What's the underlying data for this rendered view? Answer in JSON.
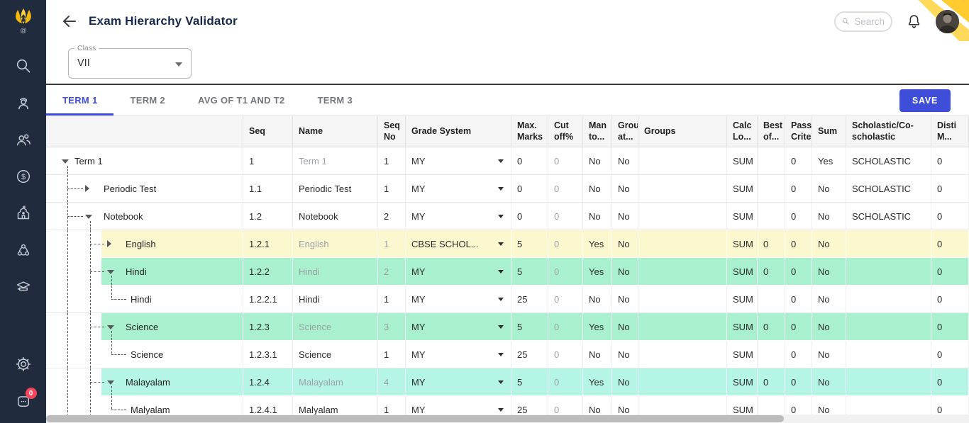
{
  "colors": {
    "accent": "#3E4ED8",
    "sidebar": "#202B3D",
    "title": "#14294B",
    "tab-inactive": "#73777C",
    "hl-yellow": "#FBF7CF",
    "hl-green": "#A9F1CE",
    "hl-cyan": "#B5F5E6",
    "badge": "#F5455C",
    "logo-yellow": "#F9C20A"
  },
  "sidebar": {
    "icons": [
      "search-icon",
      "student-icon",
      "users-icon",
      "finance-icon",
      "school-icon",
      "community-icon",
      "graduation-icon",
      "settings-icon",
      "chat-icon"
    ],
    "chat_badge": "0"
  },
  "header": {
    "title": "Exam Hierarchy Validator",
    "search_placeholder": "Search"
  },
  "filters": {
    "class_label": "Class",
    "class_value": "VII"
  },
  "tabs": [
    {
      "label": "TERM 1",
      "active": true
    },
    {
      "label": "TERM 2",
      "active": false
    },
    {
      "label": "AVG OF T1 AND T2",
      "active": false
    },
    {
      "label": "TERM 3",
      "active": false
    }
  ],
  "save_label": "SAVE",
  "table": {
    "columns": [
      "",
      "Seq",
      "Name",
      "Seq No",
      "Grade System",
      "Max. Marks",
      "Cut off%",
      "Man to...",
      "Grou at...",
      "Groups",
      "Calc Lo...",
      "Best of...",
      "Pass Crite",
      "Sum",
      "Scholastic/Co-scholastic",
      "Disti M..."
    ],
    "rows": [
      {
        "tree_label": "Term 1",
        "level": 0,
        "toggle": "expanded",
        "highlight": "none",
        "seq": "1",
        "name": "Term 1",
        "name_muted": true,
        "seq_no": "1",
        "seq_no_muted": false,
        "grade_system": "MY",
        "max_marks": "0",
        "cut_off": "0",
        "mandatory": "No",
        "group_at": "No",
        "groups": "",
        "calc_logic": "SUM",
        "best_of": "",
        "pass_criteria": "0",
        "sum": "Yes",
        "scholastic": "SCHOLASTIC",
        "distinct_marks": "0"
      },
      {
        "tree_label": "Periodic Test",
        "level": 1,
        "toggle": "collapsed",
        "highlight": "none",
        "seq": "1.1",
        "name": "Periodic Test",
        "name_muted": false,
        "seq_no": "1",
        "seq_no_muted": false,
        "grade_system": "MY",
        "max_marks": "0",
        "cut_off": "0",
        "mandatory": "No",
        "group_at": "No",
        "groups": "",
        "calc_logic": "SUM",
        "best_of": "",
        "pass_criteria": "0",
        "sum": "No",
        "scholastic": "SCHOLASTIC",
        "distinct_marks": "0"
      },
      {
        "tree_label": "Notebook",
        "level": 1,
        "toggle": "expanded",
        "highlight": "none",
        "seq": "1.2",
        "name": "Notebook",
        "name_muted": false,
        "seq_no": "2",
        "seq_no_muted": false,
        "grade_system": "MY",
        "max_marks": "0",
        "cut_off": "0",
        "mandatory": "No",
        "group_at": "No",
        "groups": "",
        "calc_logic": "SUM",
        "best_of": "",
        "pass_criteria": "0",
        "sum": "No",
        "scholastic": "SCHOLASTIC",
        "distinct_marks": "0"
      },
      {
        "tree_label": "English",
        "level": 2,
        "toggle": "collapsed",
        "highlight": "yellow",
        "seq": "1.2.1",
        "name": "English",
        "name_muted": true,
        "seq_no": "1",
        "seq_no_muted": true,
        "grade_system": "CBSE SCHOL...",
        "max_marks": "5",
        "cut_off": "0",
        "mandatory": "Yes",
        "group_at": "No",
        "groups": "",
        "calc_logic": "SUM",
        "best_of": "0",
        "pass_criteria": "0",
        "sum": "No",
        "scholastic": "",
        "distinct_marks": "0"
      },
      {
        "tree_label": "Hindi",
        "level": 2,
        "toggle": "expanded",
        "highlight": "green",
        "seq": "1.2.2",
        "name": "Hindi",
        "name_muted": true,
        "seq_no": "2",
        "seq_no_muted": true,
        "grade_system": "MY",
        "max_marks": "5",
        "cut_off": "0",
        "mandatory": "Yes",
        "group_at": "No",
        "groups": "",
        "calc_logic": "SUM",
        "best_of": "0",
        "pass_criteria": "0",
        "sum": "No",
        "scholastic": "",
        "distinct_marks": "0"
      },
      {
        "tree_label": "Hindi",
        "level": 3,
        "toggle": "none",
        "highlight": "none",
        "seq": "1.2.2.1",
        "name": "Hindi",
        "name_muted": false,
        "seq_no": "1",
        "seq_no_muted": false,
        "grade_system": "MY",
        "max_marks": "25",
        "cut_off": "0",
        "mandatory": "No",
        "group_at": "No",
        "groups": "",
        "calc_logic": "SUM",
        "best_of": "",
        "pass_criteria": "0",
        "sum": "No",
        "scholastic": "",
        "distinct_marks": "0"
      },
      {
        "tree_label": "Science",
        "level": 2,
        "toggle": "expanded",
        "highlight": "green",
        "seq": "1.2.3",
        "name": "Science",
        "name_muted": true,
        "seq_no": "3",
        "seq_no_muted": true,
        "grade_system": "MY",
        "max_marks": "5",
        "cut_off": "0",
        "mandatory": "Yes",
        "group_at": "No",
        "groups": "",
        "calc_logic": "SUM",
        "best_of": "0",
        "pass_criteria": "0",
        "sum": "No",
        "scholastic": "",
        "distinct_marks": "0"
      },
      {
        "tree_label": "Science",
        "level": 3,
        "toggle": "none",
        "highlight": "none",
        "seq": "1.2.3.1",
        "name": "Science",
        "name_muted": false,
        "seq_no": "1",
        "seq_no_muted": false,
        "grade_system": "MY",
        "max_marks": "25",
        "cut_off": "0",
        "mandatory": "No",
        "group_at": "No",
        "groups": "",
        "calc_logic": "SUM",
        "best_of": "",
        "pass_criteria": "0",
        "sum": "No",
        "scholastic": "",
        "distinct_marks": "0"
      },
      {
        "tree_label": "Malayalam",
        "level": 2,
        "toggle": "expanded",
        "highlight": "cyan",
        "seq": "1.2.4",
        "name": "Malayalam",
        "name_muted": true,
        "seq_no": "4",
        "seq_no_muted": true,
        "grade_system": "MY",
        "max_marks": "5",
        "cut_off": "0",
        "mandatory": "Yes",
        "group_at": "No",
        "groups": "",
        "calc_logic": "SUM",
        "best_of": "0",
        "pass_criteria": "0",
        "sum": "No",
        "scholastic": "",
        "distinct_marks": "0"
      },
      {
        "tree_label": "Malyalam",
        "level": 3,
        "toggle": "none",
        "highlight": "none",
        "seq": "1.2.4.1",
        "name": "Malyalam",
        "name_muted": false,
        "seq_no": "1",
        "seq_no_muted": false,
        "grade_system": "MY",
        "max_marks": "25",
        "cut_off": "0",
        "mandatory": "No",
        "group_at": "No",
        "groups": "",
        "calc_logic": "SUM",
        "best_of": "",
        "pass_criteria": "0",
        "sum": "No",
        "scholastic": "",
        "distinct_marks": "0"
      }
    ]
  }
}
